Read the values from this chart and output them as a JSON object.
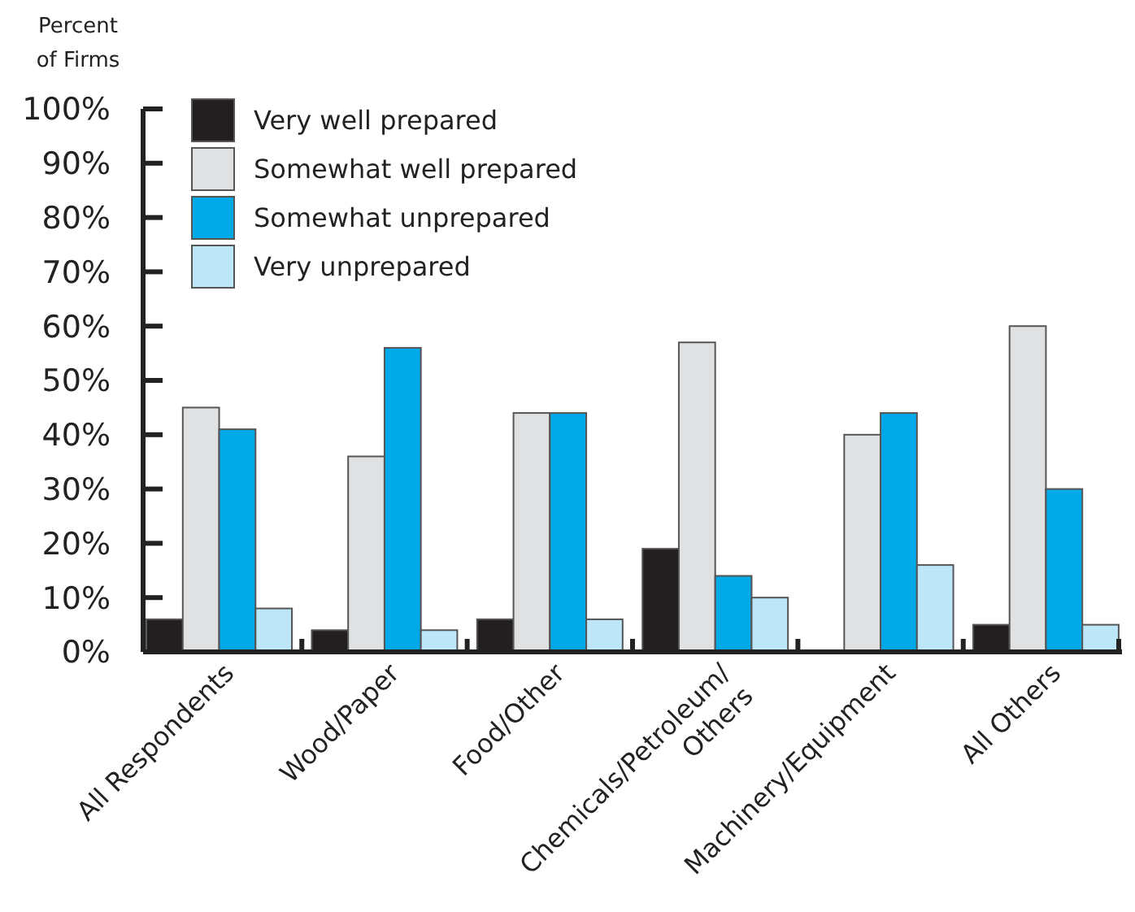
{
  "chart_data": {
    "type": "bar",
    "ylabel": "Percent of Firms",
    "categories": [
      "All Respondents",
      "Wood/Paper",
      "Food/Other",
      "Chemicals/Petroleum/ Others",
      "Machinery/Equipment",
      "All Others"
    ],
    "series": [
      {
        "name": "Very well prepared",
        "color": "#231f20",
        "values": [
          6,
          4,
          6,
          19,
          0,
          5
        ]
      },
      {
        "name": "Somewhat well prepared",
        "color": "#e0e1e3",
        "values": [
          45,
          36,
          44,
          57,
          40,
          60
        ]
      },
      {
        "name": "Somewhat unprepared",
        "color": "#00a9e8",
        "values": [
          41,
          56,
          44,
          14,
          44,
          30
        ]
      },
      {
        "name": "Very unprepared",
        "color": "#bde6f8",
        "values": [
          8,
          4,
          6,
          10,
          16,
          5
        ]
      }
    ],
    "ylim": [
      0,
      100
    ],
    "yticks": [
      {
        "value": 0,
        "label": "0%"
      },
      {
        "value": 10,
        "label": "10%"
      },
      {
        "value": 20,
        "label": "20%"
      },
      {
        "value": 30,
        "label": "30%"
      },
      {
        "value": 40,
        "label": "40%"
      },
      {
        "value": 50,
        "label": "50%"
      },
      {
        "value": 60,
        "label": "60%"
      },
      {
        "value": 70,
        "label": "70%"
      },
      {
        "value": 80,
        "label": "80%"
      },
      {
        "value": 90,
        "label": "90%"
      },
      {
        "value": 100,
        "label": "100%"
      }
    ],
    "legend": "top left",
    "grid": false
  }
}
